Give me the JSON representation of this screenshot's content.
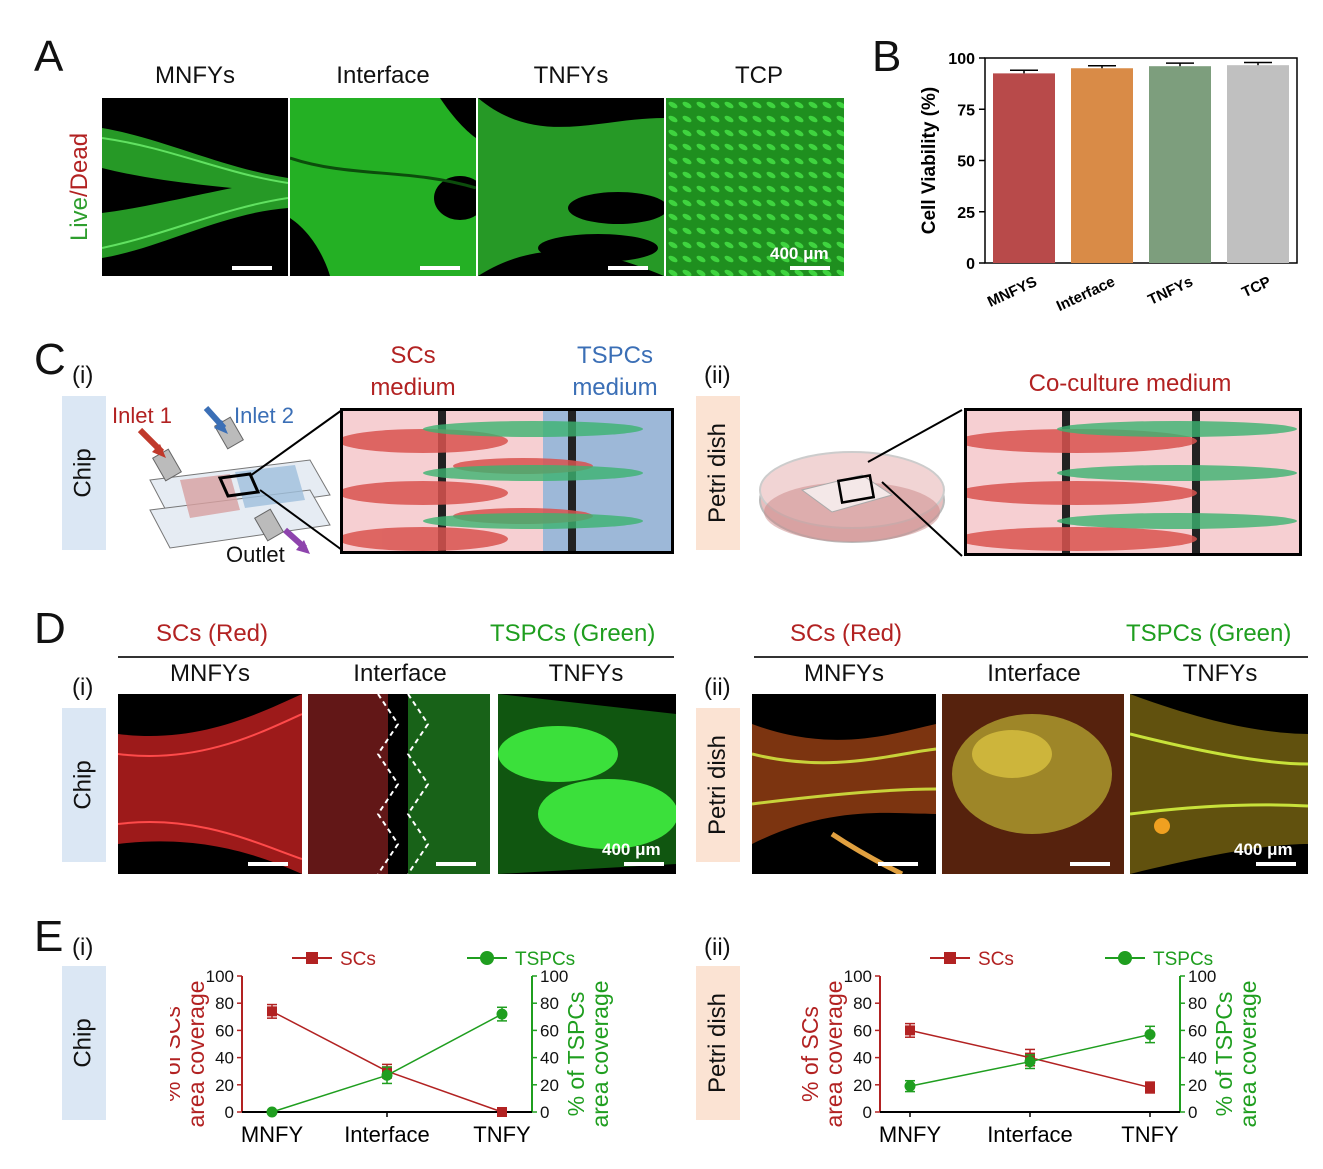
{
  "panels": {
    "a": "A",
    "b": "B",
    "c": "C",
    "d": "D",
    "e": "E"
  },
  "panelA": {
    "columns": [
      "MNFYs",
      "Interface",
      "TNFYs",
      "TCP"
    ],
    "ylabel_live": "Live",
    "ylabel_sep": "/",
    "ylabel_dead": "Dead",
    "scale_text": "400 μm"
  },
  "panelC": {
    "i": "(i)",
    "ii": "(ii)",
    "chip": "Chip",
    "petri": "Petri dish",
    "inlet1": "Inlet 1",
    "inlet2": "Inlet 2",
    "outlet": "Outlet",
    "scs_medium_1": "SCs",
    "scs_medium_2": "medium",
    "tspcs_medium_1": "TSPCs",
    "tspcs_medium_2": "medium",
    "coculture": "Co-culture medium"
  },
  "panelD": {
    "i": "(i)",
    "ii": "(ii)",
    "chip": "Chip",
    "petri": "Petri dish",
    "scs_red": "SCs (Red)",
    "tspcs_green": "TSPCs (Green)",
    "columns": [
      "MNFYs",
      "Interface",
      "TNFYs"
    ],
    "scale_text": "400 μm"
  },
  "panelE": {
    "i": "(i)",
    "ii": "(ii)",
    "chip": "Chip",
    "petri": "Petri dish"
  },
  "colors": {
    "red": "#b22222",
    "green": "#1f9e1f",
    "blue": "#3b6fb6",
    "chip_box": "#dbe7f4",
    "petri_box": "#fbe3d3"
  },
  "chart_data": [
    {
      "id": "B",
      "type": "bar",
      "categories": [
        "MNFYS",
        "Interface",
        "TNFYs",
        "TCP"
      ],
      "values": [
        92.5,
        95,
        96,
        96.5
      ],
      "errors": [
        1.5,
        1.2,
        1.5,
        1.3
      ],
      "colors": [
        "#b84a4a",
        "#d98b47",
        "#7d9e7d",
        "#c0c0c0"
      ],
      "ylabel": "Cell Viability (%)",
      "ylim": [
        0,
        100
      ],
      "yticks": [
        0,
        25,
        50,
        75,
        100
      ]
    },
    {
      "id": "E-i",
      "type": "line",
      "categories": [
        "MNFY",
        "Interface",
        "TNFY"
      ],
      "series": [
        {
          "name": "SCs",
          "axis": "left",
          "color": "#b22222",
          "marker": "square",
          "values": [
            74,
            30,
            0
          ],
          "errors": [
            5,
            5,
            1
          ]
        },
        {
          "name": "TSPCs",
          "axis": "right",
          "color": "#1f9e1f",
          "marker": "circle",
          "values": [
            0,
            27,
            72
          ],
          "errors": [
            1,
            6,
            5
          ]
        }
      ],
      "ylabel_left_1": "% of SCs",
      "ylabel_left_2": "area coverage",
      "ylabel_right_1": "% of TSPCs",
      "ylabel_right_2": "area coverage",
      "ylim": [
        0,
        100
      ],
      "yticks": [
        0,
        20,
        40,
        60,
        80,
        100
      ]
    },
    {
      "id": "E-ii",
      "type": "line",
      "categories": [
        "MNFY",
        "Interface",
        "TNFY"
      ],
      "series": [
        {
          "name": "SCs",
          "axis": "left",
          "color": "#b22222",
          "marker": "square",
          "values": [
            60,
            40,
            18
          ],
          "errors": [
            5,
            6,
            4
          ]
        },
        {
          "name": "TSPCs",
          "axis": "right",
          "color": "#1f9e1f",
          "marker": "circle",
          "values": [
            19,
            37,
            57
          ],
          "errors": [
            4,
            5,
            6
          ]
        }
      ],
      "ylabel_left_1": "% of SCs",
      "ylabel_left_2": "area coverage",
      "ylabel_right_1": "% of TSPCs",
      "ylabel_right_2": "area coverage",
      "ylim": [
        0,
        100
      ],
      "yticks": [
        0,
        20,
        40,
        60,
        80,
        100
      ]
    }
  ]
}
